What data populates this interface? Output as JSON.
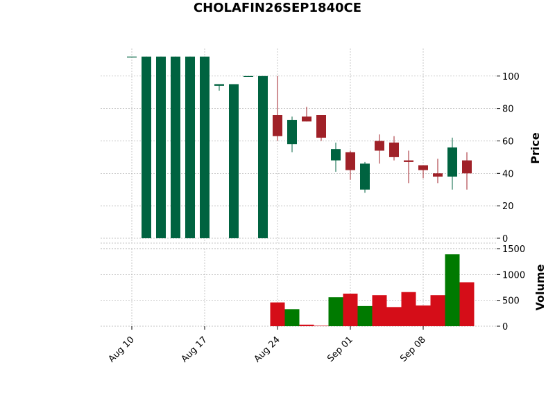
{
  "chart_data": {
    "type": "candlestick",
    "title": "CHOLAFIN26SEP1840CE",
    "ylabel_price": "Price",
    "ylabel_volume": "Volume",
    "price_ylim": [
      -3,
      117
    ],
    "price_yticks": [
      0,
      20,
      40,
      60,
      80,
      100
    ],
    "volume_ylim": [
      0,
      1500
    ],
    "volume_yticks": [
      0,
      500,
      1000,
      1500
    ],
    "xticks": [
      {
        "label": "Aug 10",
        "index": 0
      },
      {
        "label": "Aug 17",
        "index": 5
      },
      {
        "label": "Aug 24",
        "index": 10
      },
      {
        "label": "Sep 01",
        "index": 15
      },
      {
        "label": "Sep 08",
        "index": 20
      }
    ],
    "colors": {
      "up": "#006340",
      "down": "#a02128",
      "volume_up": "#007a00",
      "volume_down": "#d50d18",
      "grid": "#b0b0b0"
    },
    "candles": [
      {
        "date": "Aug 10",
        "open": 112,
        "high": 112,
        "low": 112,
        "close": 112,
        "volume": 0
      },
      {
        "date": "Aug 11",
        "open": 0,
        "high": 112,
        "low": 0,
        "close": 112,
        "volume": 0
      },
      {
        "date": "Aug 12",
        "open": 0,
        "high": 112,
        "low": 0,
        "close": 112,
        "volume": 0
      },
      {
        "date": "Aug 13",
        "open": 0,
        "high": 112,
        "low": 0,
        "close": 112,
        "volume": 0
      },
      {
        "date": "Aug 14",
        "open": 0,
        "high": 112,
        "low": 0,
        "close": 112,
        "volume": 0
      },
      {
        "date": "Aug 17",
        "open": 0,
        "high": 112,
        "low": 0,
        "close": 112,
        "volume": 0
      },
      {
        "date": "Aug 18",
        "open": 94,
        "high": 95,
        "low": 91,
        "close": 95,
        "volume": 0
      },
      {
        "date": "Aug 19",
        "open": 0,
        "high": 95,
        "low": 0,
        "close": 95,
        "volume": 0
      },
      {
        "date": "Aug 20",
        "open": 100,
        "high": 100,
        "low": 100,
        "close": 100,
        "volume": 0
      },
      {
        "date": "Aug 21",
        "open": 0,
        "high": 100,
        "low": 0,
        "close": 100,
        "volume": 0
      },
      {
        "date": "Aug 24",
        "open": 76,
        "high": 100,
        "low": 60,
        "close": 63,
        "volume": 460
      },
      {
        "date": "Aug 25",
        "open": 58,
        "high": 75,
        "low": 53,
        "close": 73,
        "volume": 330
      },
      {
        "date": "Aug 26",
        "open": 75,
        "high": 81,
        "low": 72,
        "close": 72,
        "volume": 30
      },
      {
        "date": "Aug 27",
        "open": 76,
        "high": 76,
        "low": 60,
        "close": 62,
        "volume": 10
      },
      {
        "date": "Aug 28",
        "open": 48,
        "high": 59,
        "low": 41,
        "close": 55,
        "volume": 560
      },
      {
        "date": "Aug 31",
        "open": 53,
        "high": 54,
        "low": 36,
        "close": 42,
        "volume": 630
      },
      {
        "date": "Sep 01",
        "open": 30,
        "high": 47,
        "low": 28,
        "close": 46,
        "volume": 390
      },
      {
        "date": "Sep 02",
        "open": 60,
        "high": 64,
        "low": 46,
        "close": 54,
        "volume": 600
      },
      {
        "date": "Sep 03",
        "open": 59,
        "high": 63,
        "low": 48,
        "close": 50,
        "volume": 370
      },
      {
        "date": "Sep 04",
        "open": 48,
        "high": 54,
        "low": 34,
        "close": 47,
        "volume": 660
      },
      {
        "date": "Sep 07",
        "open": 45,
        "high": 45,
        "low": 37,
        "close": 42,
        "volume": 400
      },
      {
        "date": "Sep 08",
        "open": 40,
        "high": 49,
        "low": 34,
        "close": 38,
        "volume": 600
      },
      {
        "date": "Sep 09",
        "open": 38,
        "high": 62,
        "low": 30,
        "close": 56,
        "volume": 1390
      },
      {
        "date": "Sep 10",
        "open": 48,
        "high": 53,
        "low": 30,
        "close": 40,
        "volume": 850
      }
    ]
  }
}
